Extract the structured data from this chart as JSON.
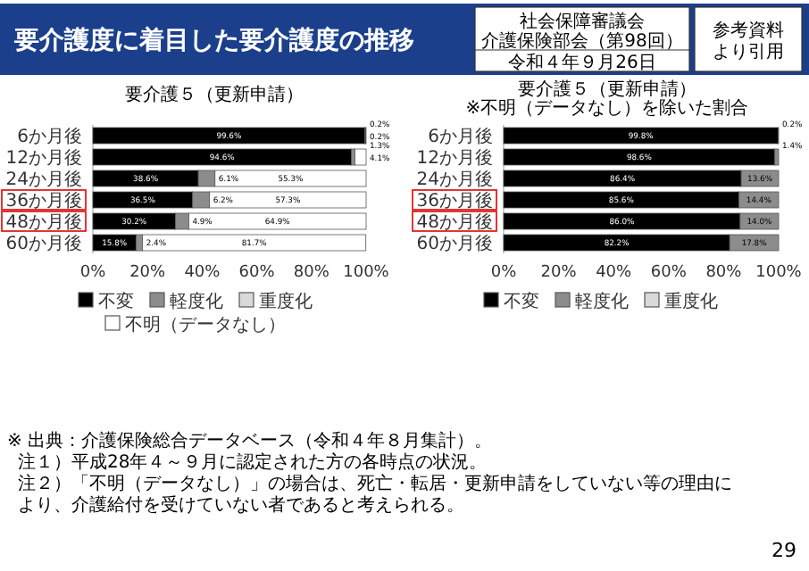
{
  "chart_data": [
    {
      "type": "other",
      "title": "要介護度に着目した要介護度の推移",
      "annotations": [
        "社会保障審議会",
        "介護保険部会（第98回）",
        "令和４年９月26日",
        "参考資料",
        "より引用",
        "※ 出典：介護保険総合データベース（令和４年８月集計）。",
        "注１）平成28年４～９月に認定された方の各時点の状況。",
        "注２）「不明（データなし）」の場合は、死亡・転居・更新申請をしていない等の理由により、介護給付を受けていない者であると考えられる。",
        "29"
      ]
    },
    {
      "type": "bar",
      "orientation": "horizontal",
      "stacked": true,
      "title": "要介護５（更新申請）",
      "categories": [
        "6か月後",
        "12か月後",
        "24か月後",
        "36か月後",
        "48か月後",
        "60か月後"
      ],
      "xlim": [
        0,
        100
      ],
      "xticks": [
        {
          "value": 0,
          "label": "0%"
        },
        {
          "value": 20,
          "label": "20%"
        },
        {
          "value": 40,
          "label": "40%"
        },
        {
          "value": 60,
          "label": "60%"
        },
        {
          "value": 80,
          "label": "80%"
        },
        {
          "value": 100,
          "label": "100%"
        }
      ],
      "legend": "bottom",
      "series": [
        {
          "name": "不変",
          "color": "#000000",
          "values": [
            99.6,
            94.6,
            38.6,
            36.5,
            30.2,
            15.8
          ],
          "value_labels": [
            "99.6%",
            "94.6%",
            "38.6%",
            "36.5%",
            "30.2%",
            "15.8%"
          ]
        },
        {
          "name": "軽度化",
          "color": "#8c8c8c",
          "values": [
            0.2,
            1.3,
            6.1,
            6.2,
            4.9,
            2.4
          ],
          "value_labels": [
            "0.2%",
            "1.3%",
            "6.1%",
            "6.2%",
            "4.9%",
            "2.4%"
          ]
        },
        {
          "name": "重度化",
          "color": "#d9d9d9",
          "values": [
            0,
            0,
            0,
            0,
            0,
            0
          ]
        },
        {
          "name": "不明（データなし）",
          "color": "#ffffff",
          "values": [
            0.2,
            4.1,
            55.3,
            57.3,
            64.9,
            81.7
          ],
          "value_labels": [
            "0.2%",
            "4.1%",
            "55.3%",
            "57.3%",
            "64.9%",
            "81.7%"
          ]
        }
      ]
    },
    {
      "type": "bar",
      "orientation": "horizontal",
      "stacked": true,
      "title": "要介護５（更新申請）　※不明（データなし）を除いた割合",
      "categories": [
        "6か月後",
        "12か月後",
        "24か月後",
        "36か月後",
        "48か月後",
        "60か月後"
      ],
      "xlim": [
        0,
        100
      ],
      "xticks": [
        {
          "value": 0,
          "label": "0%"
        },
        {
          "value": 20,
          "label": "20%"
        },
        {
          "value": 40,
          "label": "40%"
        },
        {
          "value": 60,
          "label": "60%"
        },
        {
          "value": 80,
          "label": "80%"
        },
        {
          "value": 100,
          "label": "100%"
        }
      ],
      "legend": "bottom",
      "series": [
        {
          "name": "不変",
          "color": "#000000",
          "values": [
            99.8,
            98.6,
            86.4,
            85.6,
            86.0,
            82.2
          ],
          "value_labels": [
            "99.8%",
            "98.6%",
            "86.4%",
            "85.6%",
            "86.0%",
            "82.2%"
          ]
        },
        {
          "name": "軽度化",
          "color": "#8c8c8c",
          "values": [
            0.2,
            1.4,
            13.6,
            14.4,
            14.0,
            17.8
          ],
          "value_labels": [
            "0.2%",
            "1.4%",
            "13.6%",
            "14.4%",
            "14.0%",
            "17.8%"
          ]
        },
        {
          "name": "重度化",
          "color": "#d9d9d9",
          "values": [
            0,
            0,
            0,
            0,
            0,
            0
          ]
        }
      ]
    }
  ]
}
